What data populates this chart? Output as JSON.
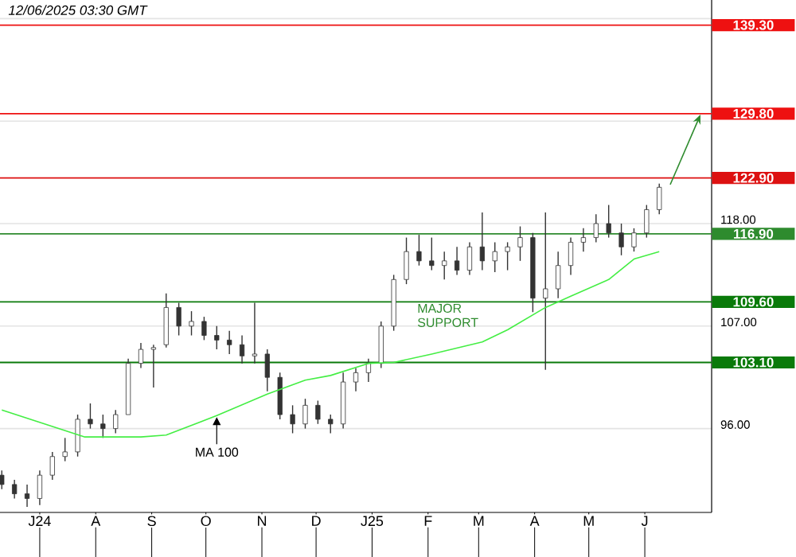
{
  "chart_data": {
    "type": "candlestick",
    "title": "12/06/2025 03:30 GMT",
    "xlim": [
      "2024-06-09",
      "2025-07-08"
    ],
    "xticks": [
      {
        "value": "2024-07-01",
        "label": "J24"
      },
      {
        "value": "2024-08-01",
        "label": "A"
      },
      {
        "value": "2024-09-01",
        "label": "S"
      },
      {
        "value": "2024-10-01",
        "label": "O"
      },
      {
        "value": "2024-11-01",
        "label": "N"
      },
      {
        "value": "2024-12-01",
        "label": "D"
      },
      {
        "value": "2025-01-01",
        "label": "J25"
      },
      {
        "value": "2025-02-01",
        "label": "F"
      },
      {
        "value": "2025-03-01",
        "label": "M"
      },
      {
        "value": "2025-04-01",
        "label": "A"
      },
      {
        "value": "2025-05-01",
        "label": "M"
      },
      {
        "value": "2025-06-01",
        "label": "J"
      }
    ],
    "ylim": [
      87,
      142
    ],
    "yticks": [
      {
        "value": 96,
        "label": "96.00"
      },
      {
        "value": 107,
        "label": "107.00"
      },
      {
        "value": 118,
        "label": "118.00"
      },
      {
        "value": 129,
        "label": null
      },
      {
        "value": 140,
        "label": null
      }
    ],
    "grid": "y",
    "series": [
      {
        "color": "#333333",
        "x": [
          "2024-06-10",
          "2024-06-17",
          "2024-06-24",
          "2024-07-01",
          "2024-07-08",
          "2024-07-15",
          "2024-07-22",
          "2024-07-29",
          "2024-08-05",
          "2024-08-12",
          "2024-08-19",
          "2024-08-26",
          "2024-09-02",
          "2024-09-09",
          "2024-09-16",
          "2024-09-23",
          "2024-09-30",
          "2024-10-07",
          "2024-10-14",
          "2024-10-21",
          "2024-10-28",
          "2024-11-04",
          "2024-11-11",
          "2024-11-18",
          "2024-11-25",
          "2024-12-02",
          "2024-12-09",
          "2024-12-16",
          "2024-12-23",
          "2024-12-30",
          "2025-01-06",
          "2025-01-13",
          "2025-01-20",
          "2025-01-27",
          "2025-02-03",
          "2025-02-10",
          "2025-02-17",
          "2025-02-24",
          "2025-03-03",
          "2025-03-10",
          "2025-03-17",
          "2025-03-24",
          "2025-03-31",
          "2025-04-07",
          "2025-04-14",
          "2025-04-21",
          "2025-04-28",
          "2025-05-05",
          "2025-05-12",
          "2025-05-19",
          "2025-05-26",
          "2025-06-02",
          "2025-06-09"
        ],
        "ohlc": [
          [
            91,
            91.5,
            89.5,
            90
          ],
          [
            90,
            90.5,
            88.5,
            89
          ],
          [
            89,
            90,
            87.6,
            88.5
          ],
          [
            88.5,
            91.5,
            87.8,
            91
          ],
          [
            91,
            93.5,
            90.5,
            93
          ],
          [
            93,
            95,
            92.5,
            93.5
          ],
          [
            93.5,
            97.5,
            93,
            97
          ],
          [
            97,
            98.7,
            96,
            96.5
          ],
          [
            96.5,
            97.5,
            95,
            96
          ],
          [
            96,
            98,
            95.5,
            97.5
          ],
          [
            97.5,
            103.5,
            97.5,
            103
          ],
          [
            103,
            105.2,
            102.5,
            104.5
          ],
          [
            104.5,
            105,
            100.4,
            104.7
          ],
          [
            105,
            110.5,
            104.7,
            109
          ],
          [
            109,
            109.5,
            106,
            107
          ],
          [
            107,
            108.6,
            106,
            107.5
          ],
          [
            107.5,
            108,
            105.5,
            106
          ],
          [
            106,
            107,
            104.5,
            105.5
          ],
          [
            105.5,
            106.5,
            104,
            105
          ],
          [
            105,
            106,
            103,
            103.8
          ],
          [
            103.8,
            109.5,
            103,
            104
          ],
          [
            104,
            104.5,
            100,
            101.5
          ],
          [
            101.5,
            102,
            97,
            97.5
          ],
          [
            97.5,
            98.5,
            95.5,
            96.5
          ],
          [
            96.5,
            99.2,
            96,
            98.5
          ],
          [
            98.5,
            99,
            96.5,
            97
          ],
          [
            97,
            97.5,
            95.5,
            96.5
          ],
          [
            96.5,
            102,
            96,
            101
          ],
          [
            101,
            102.5,
            100,
            102
          ],
          [
            102,
            103.5,
            101,
            103
          ],
          [
            103,
            107.5,
            102.5,
            107
          ],
          [
            107,
            112.5,
            106.5,
            112
          ],
          [
            112,
            116.5,
            111.5,
            115
          ],
          [
            115,
            116.8,
            113.5,
            114
          ],
          [
            114,
            116.5,
            113,
            113.5
          ],
          [
            113.5,
            115,
            112,
            114
          ],
          [
            114,
            115.5,
            112.5,
            113
          ],
          [
            113,
            116,
            112.5,
            115.5
          ],
          [
            115.5,
            119.2,
            113,
            114
          ],
          [
            114,
            116,
            112.8,
            115
          ],
          [
            115,
            116,
            113,
            115.5
          ],
          [
            115.5,
            117.7,
            114,
            116.5
          ],
          [
            116.5,
            117,
            108.5,
            110
          ],
          [
            110,
            119.2,
            102.3,
            111
          ],
          [
            111,
            115,
            110,
            113.5
          ],
          [
            113.5,
            116.5,
            112.5,
            116
          ],
          [
            116,
            117.5,
            115,
            116.5
          ],
          [
            116.5,
            119,
            116,
            118
          ],
          [
            118,
            120,
            116.5,
            117
          ],
          [
            117,
            118,
            114.6,
            115.5
          ],
          [
            115.5,
            117.5,
            115,
            117
          ],
          [
            117,
            120,
            116.5,
            119.5
          ],
          [
            119.5,
            122.3,
            119,
            121.9
          ]
        ]
      },
      {
        "type": "line",
        "name": "MA 100",
        "color": "#44ee44",
        "x": [
          "2024-06-10",
          "2024-07-26",
          "2024-08-26",
          "2024-09-09",
          "2024-10-07",
          "2024-11-04",
          "2024-11-25",
          "2024-12-09",
          "2024-12-30",
          "2025-01-13",
          "2025-02-03",
          "2025-03-03",
          "2025-03-17",
          "2025-04-07",
          "2025-04-21",
          "2025-05-12",
          "2025-05-26",
          "2025-06-09"
        ],
        "values": [
          98,
          95.1,
          95.1,
          95.3,
          97.4,
          99.7,
          101.2,
          101.7,
          103,
          103.1,
          104,
          105.3,
          106.6,
          109,
          110.2,
          112,
          114.2,
          115
        ]
      }
    ],
    "ref_lines": [
      {
        "axis": "y",
        "value": 139.3,
        "label": "139.30",
        "color": "#ee1111"
      },
      {
        "axis": "y",
        "value": 129.8,
        "label": "129.80",
        "color": "#ee1111"
      },
      {
        "axis": "y",
        "value": 122.9,
        "label": "122.90",
        "color": "#dd1111"
      },
      {
        "axis": "y",
        "value": 116.9,
        "label": "116.90",
        "color": "#2e8b2e"
      },
      {
        "axis": "y",
        "value": 109.6,
        "label": "109.60",
        "color": "#0a7a0a"
      },
      {
        "axis": "y",
        "value": 103.1,
        "label": "103.10",
        "color": "#0a7a0a"
      }
    ],
    "annotations": [
      {
        "text": "MAJOR SUPPORT",
        "x": "2025-01-25",
        "y": 109.6
      }
    ]
  }
}
